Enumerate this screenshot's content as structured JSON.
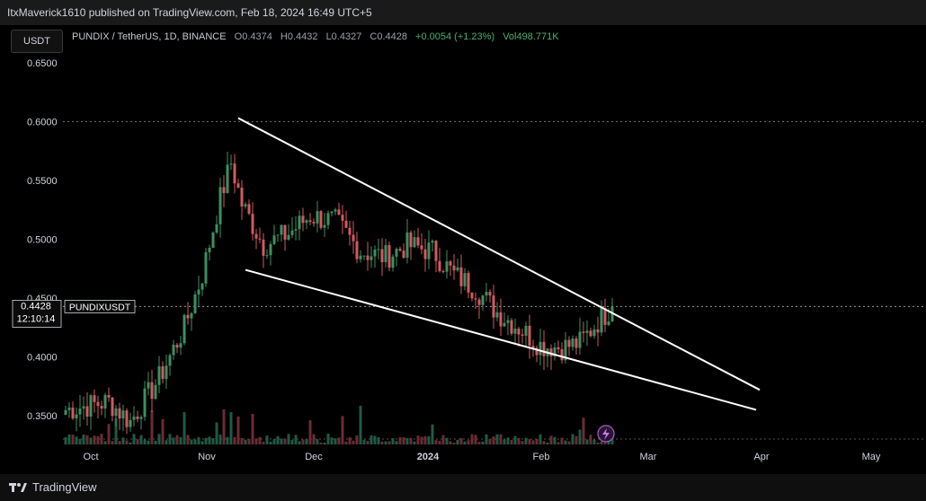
{
  "publish": {
    "text": "ItxMaverick1610 published on TradingView.com, Feb 18, 2024 16:49 UTC+5"
  },
  "scale_button": {
    "label": "USDT"
  },
  "legend": {
    "symbol": "PUNDIX / TetherUS, 1D, BINANCE",
    "open": "O0.4374",
    "high": "H0.4432",
    "low": "L0.4327",
    "close": "C0.4428",
    "change": "+0.0054 (+1.23%)",
    "volume": "Vol498.771K"
  },
  "price_tag": {
    "price": "0.4428",
    "countdown": "12:10:14",
    "symbol_label": "PUNDIXUSDT"
  },
  "footer": {
    "brand": "TradingView"
  },
  "colors": {
    "up": "#3e8f60",
    "down": "#d05a62",
    "trendline": "#ffffff",
    "grid": "#2a2a2a"
  },
  "chart_data": {
    "type": "candlestick",
    "title": "PUNDIX / TetherUS, 1D, BINANCE",
    "ylim": [
      0.32,
      0.67
    ],
    "y_ticks": [
      "0.6500",
      "0.6000",
      "0.5500",
      "0.5000",
      "0.4500",
      "0.4000",
      "0.3500"
    ],
    "x_ticks": [
      "Oct",
      "Nov",
      "Dec",
      "2024",
      "Feb",
      "Mar",
      "Apr",
      "May"
    ],
    "last_price": 0.4428,
    "grid_line_at": 0.6,
    "path_keypoints": [
      {
        "day": 0,
        "close": 0.355
      },
      {
        "day": 12,
        "close": 0.362
      },
      {
        "day": 18,
        "close": 0.345
      },
      {
        "day": 26,
        "close": 0.382
      },
      {
        "day": 33,
        "close": 0.425
      },
      {
        "day": 38,
        "close": 0.47
      },
      {
        "day": 43,
        "close": 0.535
      },
      {
        "day": 46,
        "close": 0.565
      },
      {
        "day": 49,
        "close": 0.53
      },
      {
        "day": 55,
        "close": 0.495
      },
      {
        "day": 62,
        "close": 0.505
      },
      {
        "day": 68,
        "close": 0.52
      },
      {
        "day": 75,
        "close": 0.515
      },
      {
        "day": 82,
        "close": 0.49
      },
      {
        "day": 89,
        "close": 0.485
      },
      {
        "day": 95,
        "close": 0.495
      },
      {
        "day": 102,
        "close": 0.49
      },
      {
        "day": 108,
        "close": 0.47
      },
      {
        "day": 114,
        "close": 0.458
      },
      {
        "day": 120,
        "close": 0.438
      },
      {
        "day": 126,
        "close": 0.425
      },
      {
        "day": 132,
        "close": 0.41
      },
      {
        "day": 138,
        "close": 0.408
      },
      {
        "day": 143,
        "close": 0.412
      },
      {
        "day": 148,
        "close": 0.43
      },
      {
        "day": 152,
        "close": 0.4428
      }
    ],
    "trendlines": [
      {
        "name": "upper",
        "from": {
          "day": 48,
          "price": 0.603
        },
        "to": {
          "day": 193,
          "price": 0.372
        }
      },
      {
        "name": "lower",
        "from": {
          "day": 50,
          "price": 0.474
        },
        "to": {
          "day": 192,
          "price": 0.355
        }
      }
    ]
  }
}
